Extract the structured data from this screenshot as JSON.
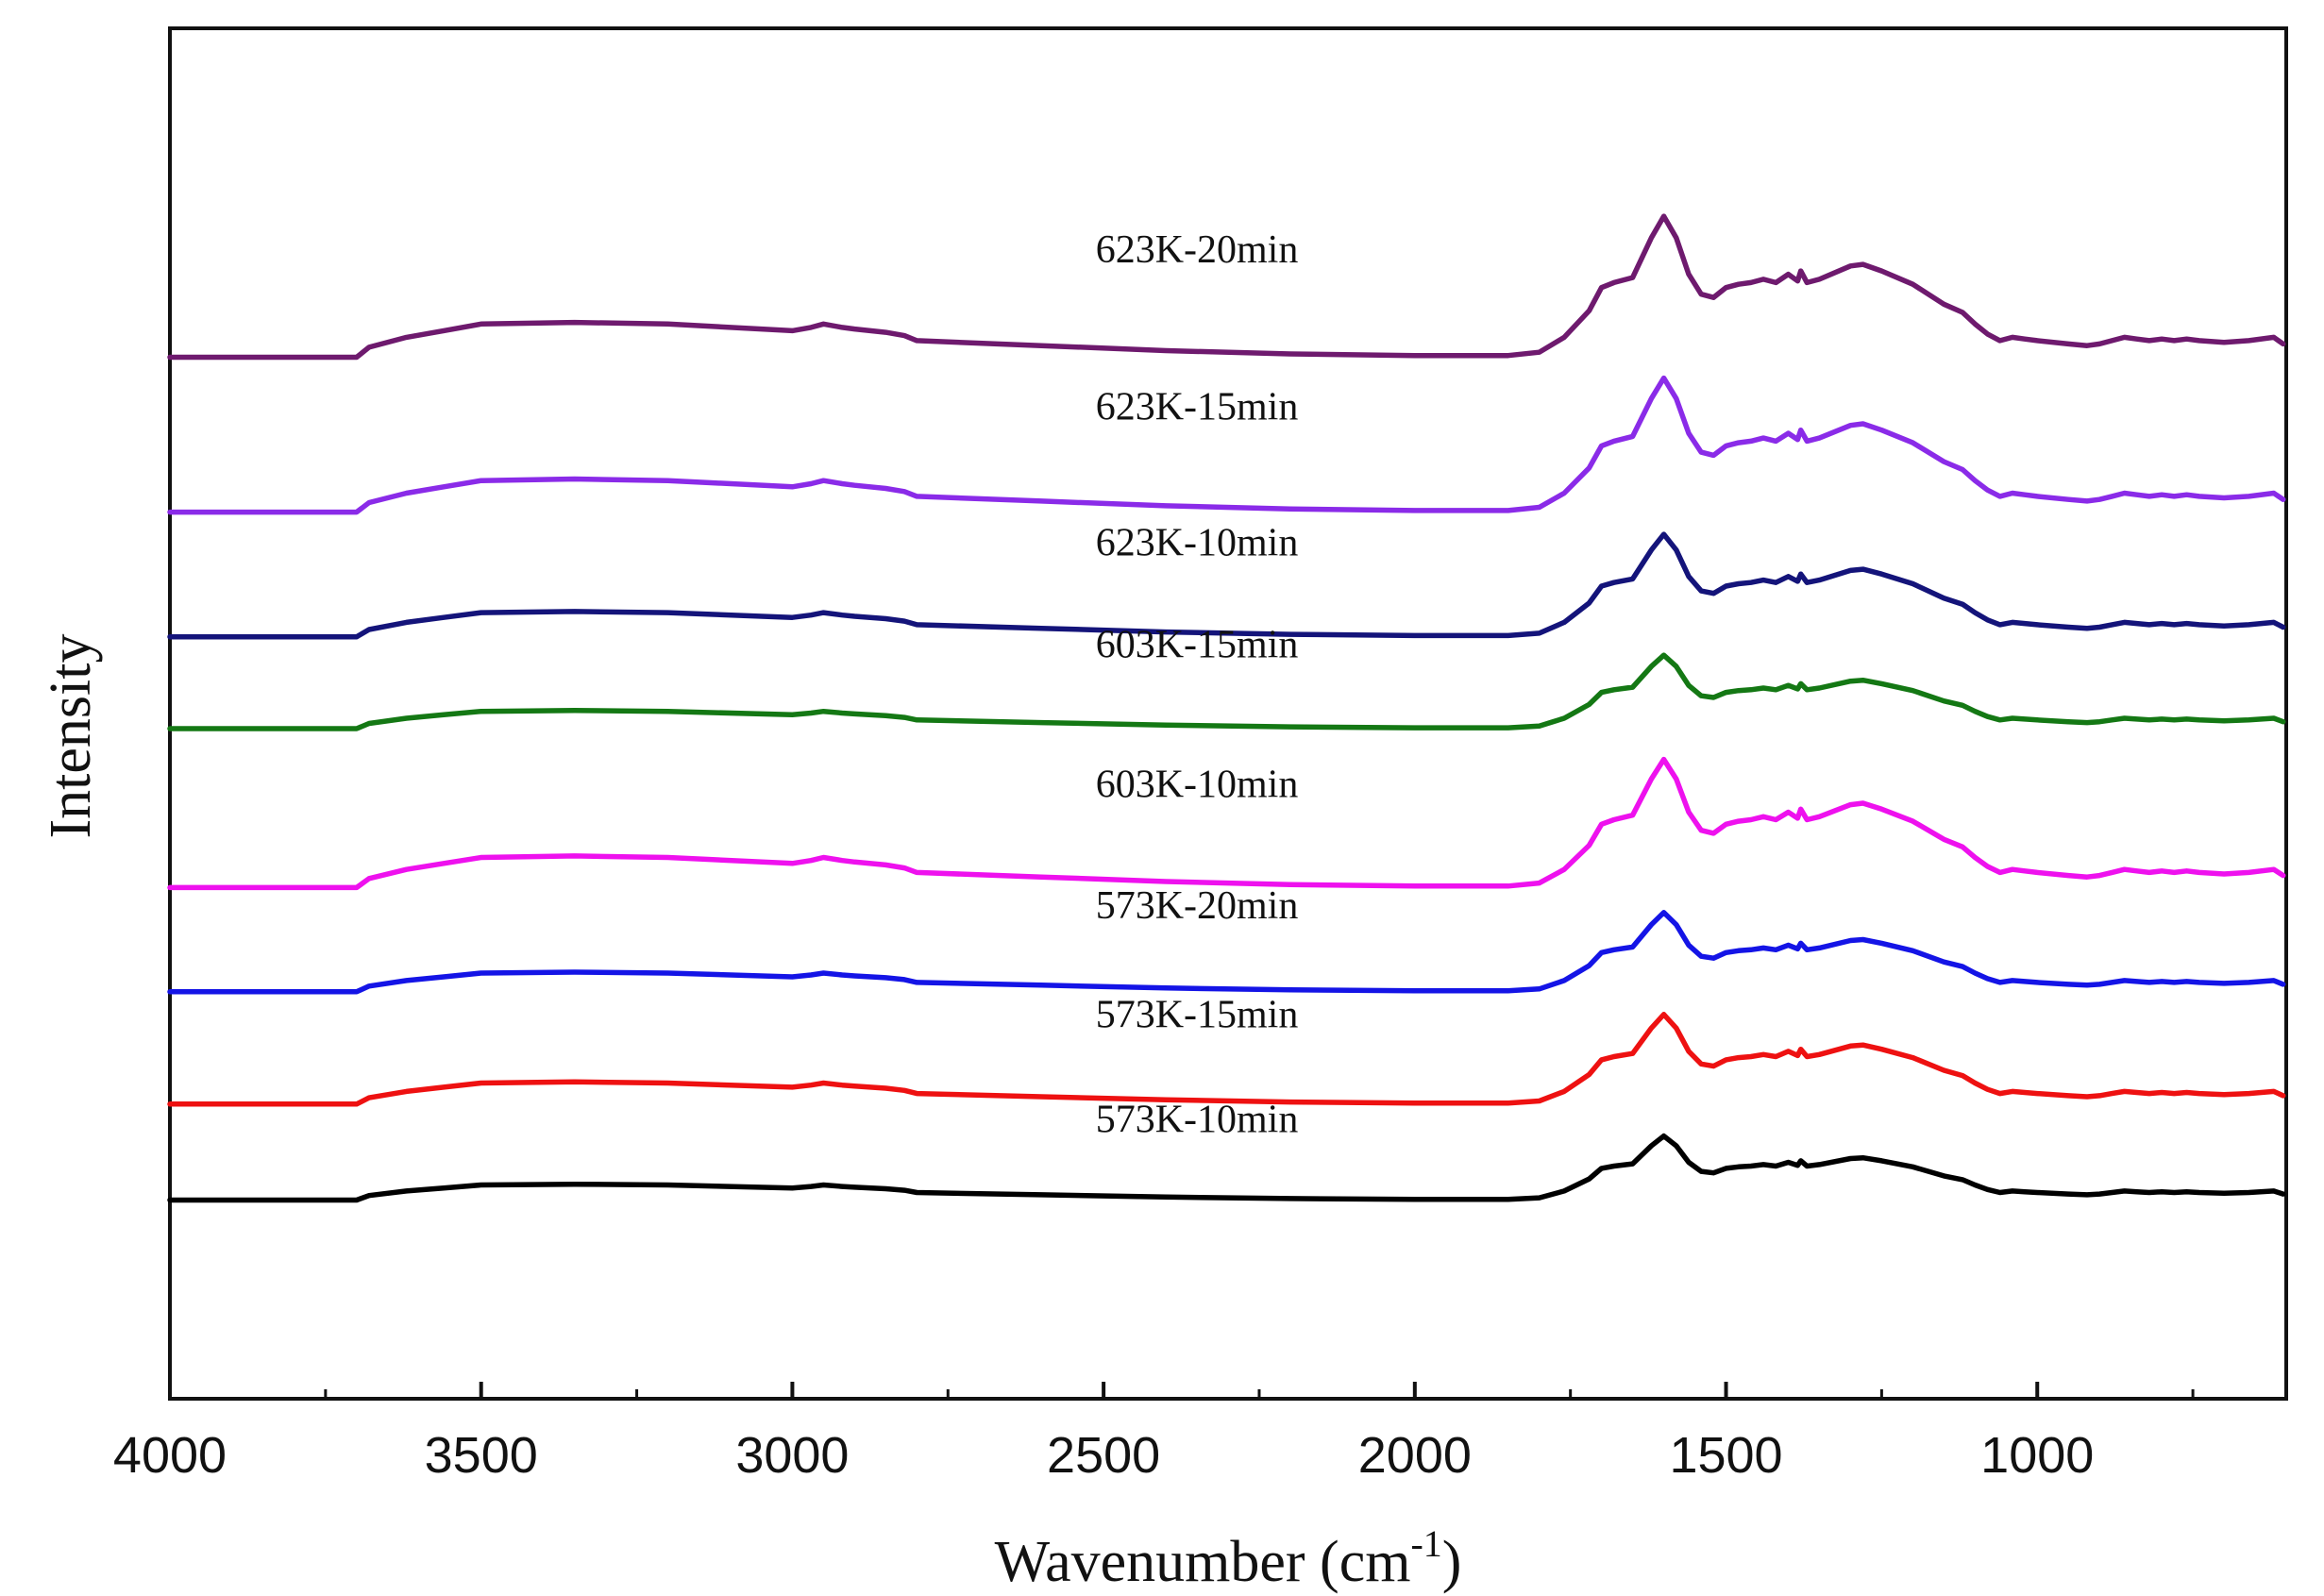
{
  "chart_data": {
    "type": "line",
    "title": "",
    "xlabel": "Wavenumber (cm",
    "xlabel_sup": "-1",
    "xlabel_close": ")",
    "ylabel": "Intensity",
    "xlim": [
      4000,
      600
    ],
    "ylim": [
      0,
      1
    ],
    "x_ticks": [
      4000,
      3500,
      3000,
      2500,
      2000,
      1500,
      1000
    ],
    "x_tick_labels": [
      "4000",
      "3500",
      "3000",
      "2500",
      "2000",
      "1500",
      "1000"
    ],
    "x_minor_ticks": [
      3750,
      3250,
      2750,
      2250,
      1750,
      1250,
      750
    ],
    "y_ticks": [],
    "grid": false,
    "legend": "inline labels above each curve",
    "shape_points": {
      "x": [
        4000,
        3700,
        3680,
        3620,
        3560,
        3500,
        3350,
        3200,
        3000,
        2970,
        2950,
        2920,
        2900,
        2850,
        2820,
        2800,
        2600,
        2400,
        2200,
        2000,
        1850,
        1800,
        1760,
        1720,
        1700,
        1680,
        1650,
        1620,
        1600,
        1580,
        1560,
        1540,
        1520,
        1500,
        1480,
        1460,
        1440,
        1420,
        1400,
        1385,
        1380,
        1370,
        1350,
        1300,
        1280,
        1250,
        1200,
        1150,
        1120,
        1100,
        1080,
        1060,
        1040,
        1020,
        1000,
        950,
        920,
        900,
        880,
        860,
        840,
        820,
        800,
        780,
        760,
        740,
        700,
        660,
        620,
        605
      ],
      "values": [
        0,
        0,
        0.06,
        0.12,
        0.16,
        0.2,
        0.21,
        0.2,
        0.16,
        0.18,
        0.2,
        0.18,
        0.17,
        0.15,
        0.13,
        0.1,
        0.07,
        0.04,
        0.02,
        0.01,
        0.01,
        0.03,
        0.12,
        0.28,
        0.42,
        0.45,
        0.48,
        0.72,
        0.85,
        0.72,
        0.5,
        0.38,
        0.36,
        0.42,
        0.44,
        0.45,
        0.47,
        0.45,
        0.5,
        0.46,
        0.52,
        0.45,
        0.47,
        0.55,
        0.56,
        0.52,
        0.44,
        0.32,
        0.27,
        0.2,
        0.14,
        0.1,
        0.12,
        0.11,
        0.1,
        0.08,
        0.07,
        0.08,
        0.1,
        0.12,
        0.11,
        0.1,
        0.11,
        0.1,
        0.11,
        0.1,
        0.09,
        0.1,
        0.12,
        0.08
      ]
    },
    "series": [
      {
        "name": "573K-10min",
        "color": "#000000",
        "baseline": 0.145,
        "amplitude": 0.055
      },
      {
        "name": "573K-15min",
        "color": "#ee1111",
        "baseline": 0.215,
        "amplitude": 0.077
      },
      {
        "name": "573K-20min",
        "color": "#1414e6",
        "baseline": 0.297,
        "amplitude": 0.068
      },
      {
        "name": "603K-10min",
        "color": "#ee11ee",
        "baseline": 0.373,
        "amplitude": 0.11
      },
      {
        "name": "603K-15min",
        "color": "#147814",
        "baseline": 0.489,
        "amplitude": 0.063
      },
      {
        "name": "623K-10min",
        "color": "#14147a",
        "baseline": 0.556,
        "amplitude": 0.088
      },
      {
        "name": "623K-15min",
        "color": "#8a2be8",
        "baseline": 0.647,
        "amplitude": 0.115
      },
      {
        "name": "623K-20min",
        "color": "#6e1a6e",
        "baseline": 0.76,
        "amplitude": 0.121
      }
    ]
  }
}
